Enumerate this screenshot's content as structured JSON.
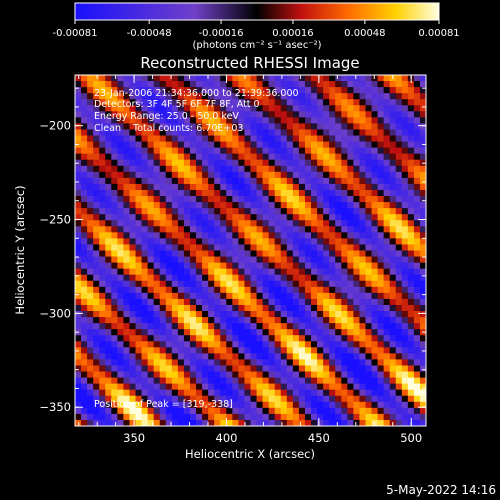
{
  "chart_data": {
    "type": "heatmap",
    "title": "Reconstructed RHESSI Image",
    "xlabel": "Heliocentric X (arcsec)",
    "ylabel": "Heliocentric Y (arcsec)",
    "x_ticks": [
      "350",
      "400",
      "450",
      "500"
    ],
    "x_tick_values": [
      350,
      400,
      450,
      500
    ],
    "y_ticks": [
      "-200",
      "-250",
      "-300",
      "-350"
    ],
    "y_tick_values": [
      -200,
      -250,
      -300,
      -350
    ],
    "xlim": [
      318,
      508
    ],
    "ylim": [
      -360,
      -173
    ],
    "colorbar": {
      "ticks": [
        "-0.00081",
        "-0.00048",
        "-0.00016",
        "0.00016",
        "0.00048",
        "0.00081"
      ],
      "tick_values": [
        -0.00081,
        -0.00048,
        -0.00016,
        0.00016,
        0.00048,
        0.00081
      ],
      "range": [
        -0.00081,
        0.00081
      ],
      "unit_label": "(photons cm⁻² s⁻¹ asec⁻²)",
      "colors": [
        "#1a10ff",
        "#7040c8",
        "#000000",
        "#c01010",
        "#ff6a00",
        "#ffd000",
        "#ffffe0"
      ]
    },
    "annotations": [
      "23-Jan-2006 21:34:36.000 to 21:39:36.000",
      "Detectors: 3F 4F 5F 6F 7F 8F, Att 0",
      "Energy Range: 25.0 - 50.0 keV",
      "Clean    Total counts: 6.70E+03"
    ],
    "peak_label": "Position of Peak = [319,-338]",
    "peak": [
      319,
      -338
    ]
  },
  "footer": {
    "timestamp": "5-May-2022 14:16"
  }
}
